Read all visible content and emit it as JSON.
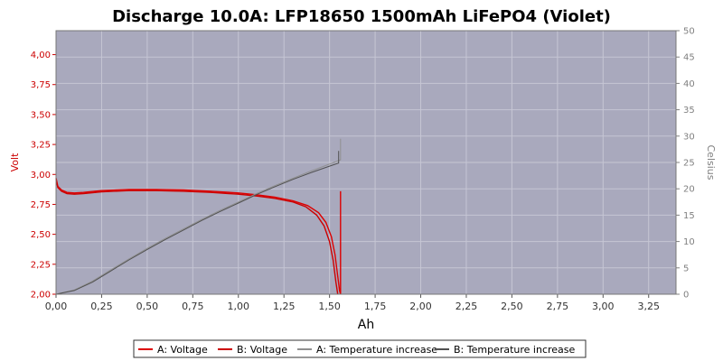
{
  "chart_data": {
    "type": "line",
    "title": "Discharge 10.0A: LFP18650 1500mAh LiFePO4 (Violet)",
    "xlabel": "Ah",
    "ylabel": "Volt",
    "y2label": "Celsius",
    "xlim": [
      0,
      3.4
    ],
    "ylim": [
      2.0,
      4.2
    ],
    "y2lim": [
      0,
      50
    ],
    "x_ticks": [
      0,
      0.25,
      0.5,
      0.75,
      1.0,
      1.25,
      1.5,
      1.75,
      2.0,
      2.25,
      2.5,
      2.75,
      3.0,
      3.25
    ],
    "x_tick_labels": [
      "0,00",
      "0,25",
      "0,50",
      "0,75",
      "1,00",
      "1,25",
      "1,50",
      "1,75",
      "2,00",
      "2,25",
      "2,50",
      "2,75",
      "3,00",
      "3,25"
    ],
    "y_ticks": [
      2.0,
      2.25,
      2.5,
      2.75,
      3.0,
      3.25,
      3.5,
      3.75,
      4.0
    ],
    "y_tick_labels": [
      "2,00",
      "2,25",
      "2,50",
      "2,75",
      "3,00",
      "3,25",
      "3,50",
      "3,75",
      "4,00"
    ],
    "y2_ticks": [
      0,
      5,
      10,
      15,
      20,
      25,
      30,
      35,
      40,
      45,
      50
    ],
    "y2_tick_labels": [
      "0",
      "5",
      "10",
      "15",
      "20",
      "25",
      "30",
      "35",
      "40",
      "45",
      "50"
    ],
    "grid": true,
    "legend_position": "bottom",
    "background_color": "#a9a9bd",
    "series": [
      {
        "name": "A: Voltage",
        "axis": "left",
        "color": "#dd0000",
        "x": [
          0,
          0.01,
          0.03,
          0.06,
          0.1,
          0.15,
          0.25,
          0.4,
          0.55,
          0.7,
          0.85,
          1.0,
          1.1,
          1.2,
          1.3,
          1.38,
          1.44,
          1.48,
          1.51,
          1.53,
          1.545,
          1.555,
          1.56,
          1.56
        ],
        "y": [
          2.97,
          2.9,
          2.87,
          2.85,
          2.845,
          2.85,
          2.865,
          2.875,
          2.875,
          2.87,
          2.86,
          2.845,
          2.83,
          2.81,
          2.78,
          2.74,
          2.68,
          2.6,
          2.48,
          2.33,
          2.15,
          2.03,
          2.0,
          2.86
        ]
      },
      {
        "name": "B: Voltage",
        "axis": "left",
        "color": "#cc0000",
        "x": [
          0,
          0.01,
          0.03,
          0.06,
          0.1,
          0.15,
          0.25,
          0.4,
          0.55,
          0.7,
          0.85,
          1.0,
          1.1,
          1.2,
          1.3,
          1.37,
          1.43,
          1.47,
          1.5,
          1.52,
          1.535,
          1.545
        ],
        "y": [
          2.96,
          2.89,
          2.86,
          2.84,
          2.835,
          2.84,
          2.855,
          2.865,
          2.865,
          2.86,
          2.85,
          2.835,
          2.82,
          2.8,
          2.77,
          2.73,
          2.66,
          2.57,
          2.44,
          2.28,
          2.1,
          2.0
        ]
      },
      {
        "name": "A: Temperature increase",
        "axis": "right",
        "color": "#909090",
        "x": [
          0,
          0.1,
          0.2,
          0.3,
          0.4,
          0.5,
          0.6,
          0.7,
          0.8,
          0.9,
          1.0,
          1.1,
          1.2,
          1.3,
          1.4,
          1.5,
          1.56,
          1.56
        ],
        "y": [
          0,
          0.8,
          2.5,
          4.6,
          6.7,
          8.7,
          10.6,
          12.4,
          14.2,
          15.9,
          17.5,
          19.1,
          20.6,
          22.0,
          23.4,
          24.7,
          25.5,
          29.5
        ]
      },
      {
        "name": "B: Temperature increase",
        "axis": "right",
        "color": "#505050",
        "x": [
          0,
          0.1,
          0.2,
          0.3,
          0.4,
          0.5,
          0.6,
          0.7,
          0.8,
          0.9,
          1.0,
          1.1,
          1.2,
          1.3,
          1.4,
          1.5,
          1.55,
          1.55
        ],
        "y": [
          0,
          0.7,
          2.3,
          4.4,
          6.5,
          8.5,
          10.4,
          12.2,
          14.0,
          15.7,
          17.3,
          18.9,
          20.4,
          21.8,
          23.1,
          24.3,
          24.9,
          27.2
        ]
      }
    ]
  }
}
